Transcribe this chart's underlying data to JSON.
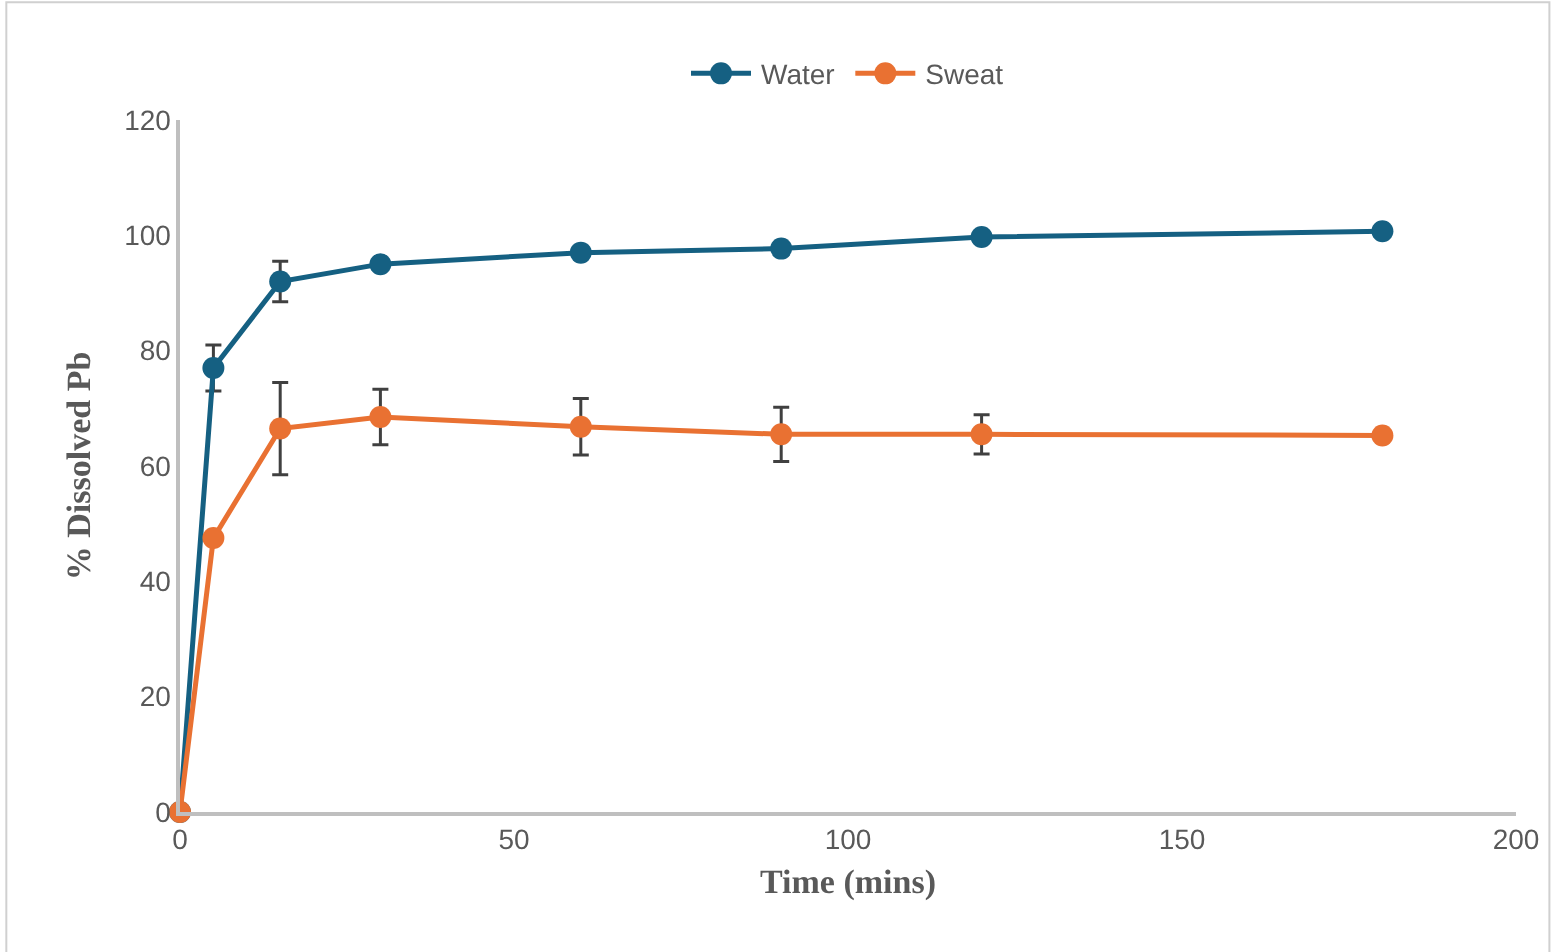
{
  "chart_data": {
    "type": "line",
    "xlabel": "Time (mins)",
    "ylabel": "% Dissolved Pb",
    "x": [
      0,
      5,
      15,
      30,
      60,
      90,
      120,
      180
    ],
    "series": [
      {
        "name": "Water",
        "color": "#156082",
        "values": [
          0,
          77,
          92,
          95,
          97,
          97.7,
          99.7,
          100.7
        ],
        "errors": [
          null,
          4,
          3.5,
          null,
          null,
          null,
          null,
          null
        ]
      },
      {
        "name": "Sweat",
        "color": "#e97132",
        "values": [
          0,
          47.5,
          66.5,
          68.5,
          66.8,
          65.5,
          65.5,
          65.3
        ],
        "errors": [
          null,
          null,
          8,
          4.8,
          4.9,
          4.7,
          3.4,
          null
        ]
      }
    ],
    "xlim": [
      0,
      200
    ],
    "xticks": [
      0,
      50,
      100,
      150,
      200
    ],
    "ylim": [
      0,
      120
    ],
    "yticks": [
      0,
      20,
      40,
      60,
      80,
      100,
      120
    ],
    "legend": "top",
    "marker": "circle",
    "line_style": "solid"
  }
}
